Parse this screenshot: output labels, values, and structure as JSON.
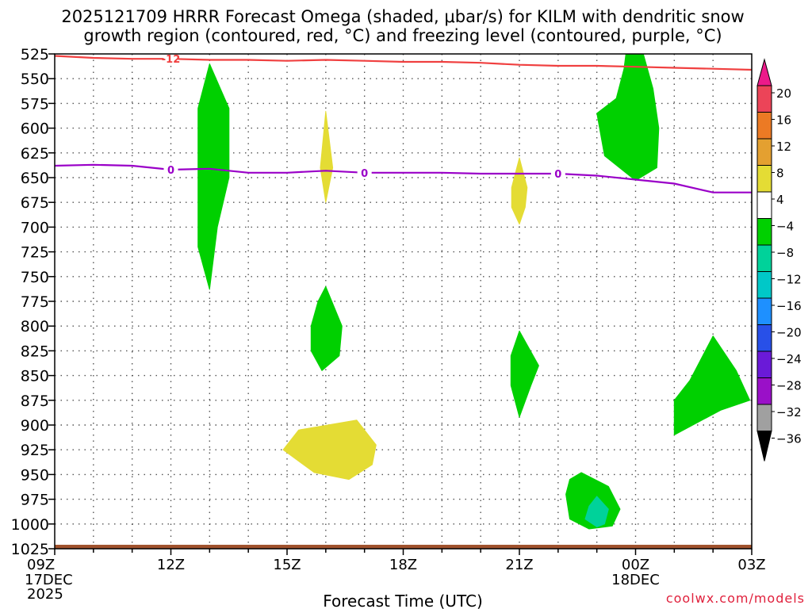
{
  "chart_data": {
    "type": "heatmap",
    "title_line1": "2025121709 HRRR Forecast Omega (shaded, μbar/s) for KILM with dendritic snow",
    "title_line2": "growth region (contoured, red, °C) and freezing level (contoured, purple, °C)",
    "xlabel": "Forecast Time (UTC)",
    "credit": "coolwx.com/models",
    "x_range_hours": [
      9,
      27
    ],
    "y_range_hPa": [
      525,
      1025
    ],
    "y_ticks": [
      525,
      550,
      575,
      600,
      625,
      650,
      675,
      700,
      725,
      750,
      775,
      800,
      825,
      850,
      875,
      900,
      925,
      950,
      975,
      1000,
      1025
    ],
    "x_ticks": [
      {
        "h": 9,
        "label": "09Z",
        "sub1": "17DEC",
        "sub2": "2025"
      },
      {
        "h": 12,
        "label": "12Z"
      },
      {
        "h": 15,
        "label": "15Z"
      },
      {
        "h": 18,
        "label": "18Z"
      },
      {
        "h": 21,
        "label": "21Z"
      },
      {
        "h": 24,
        "label": "00Z",
        "sub1": "18DEC"
      },
      {
        "h": 27,
        "label": "03Z"
      }
    ],
    "colorbar": {
      "levels": [
        "20",
        "16",
        "12",
        "8",
        "4",
        "−4",
        "−8",
        "−12",
        "−16",
        "−20",
        "−24",
        "−28",
        "−32",
        "−36"
      ],
      "colors": [
        "#ec4458",
        "#ec7a24",
        "#e4a030",
        "#e4dc34",
        "#ffffff",
        "#00d000",
        "#00d29a",
        "#00c8c8",
        "#1e90ff",
        "#2850e8",
        "#6a1ad8",
        "#9a10c8",
        "#a0a0a0"
      ],
      "top_color": "#ec1a8a",
      "bottom_color": "#000000"
    },
    "omega_regions": [
      {
        "name": "green-column-13z",
        "color": "#00d000",
        "points": [
          [
            13.0,
            535
          ],
          [
            13.5,
            580
          ],
          [
            13.5,
            650
          ],
          [
            13.2,
            700
          ],
          [
            13.0,
            763
          ],
          [
            12.7,
            720
          ],
          [
            12.7,
            580
          ]
        ]
      },
      {
        "name": "yellow-16z-upper",
        "color": "#e4dc34",
        "points": [
          [
            16.0,
            583
          ],
          [
            16.18,
            640
          ],
          [
            16.0,
            675
          ],
          [
            15.86,
            640
          ]
        ]
      },
      {
        "name": "green-16z-mid",
        "color": "#00d000",
        "points": [
          [
            16.0,
            760
          ],
          [
            16.42,
            800
          ],
          [
            16.35,
            830
          ],
          [
            15.9,
            845
          ],
          [
            15.62,
            825
          ],
          [
            15.62,
            800
          ],
          [
            15.8,
            775
          ]
        ]
      },
      {
        "name": "yellow-16z-low",
        "color": "#e4dc34",
        "points": [
          [
            16.8,
            895
          ],
          [
            17.3,
            920
          ],
          [
            17.2,
            940
          ],
          [
            16.6,
            955
          ],
          [
            15.7,
            948
          ],
          [
            14.9,
            925
          ],
          [
            15.3,
            905
          ]
        ]
      },
      {
        "name": "yellow-21z",
        "color": "#e4dc34",
        "points": [
          [
            21.0,
            630
          ],
          [
            21.2,
            660
          ],
          [
            21.15,
            680
          ],
          [
            21.0,
            697
          ],
          [
            20.8,
            680
          ],
          [
            20.8,
            660
          ]
        ]
      },
      {
        "name": "green-21z-mid",
        "color": "#00d000",
        "points": [
          [
            21.0,
            805
          ],
          [
            21.5,
            840
          ],
          [
            21.3,
            860
          ],
          [
            21.0,
            892
          ],
          [
            20.78,
            860
          ],
          [
            20.78,
            830
          ]
        ]
      },
      {
        "name": "green-22z-low",
        "color": "#00d000",
        "points": [
          [
            22.6,
            948
          ],
          [
            23.3,
            962
          ],
          [
            23.6,
            985
          ],
          [
            23.4,
            1002
          ],
          [
            22.8,
            1005
          ],
          [
            22.3,
            995
          ],
          [
            22.2,
            970
          ],
          [
            22.3,
            955
          ]
        ]
      },
      {
        "name": "teal-22z-low",
        "color": "#00d29a",
        "points": [
          [
            23.0,
            972
          ],
          [
            23.3,
            985
          ],
          [
            23.2,
            1000
          ],
          [
            23.0,
            1003
          ],
          [
            22.7,
            995
          ],
          [
            22.8,
            982
          ]
        ]
      },
      {
        "name": "green-24z-upper",
        "color": "#00d000",
        "points": [
          [
            24.2,
            525
          ],
          [
            24.45,
            560
          ],
          [
            24.6,
            600
          ],
          [
            24.55,
            640
          ],
          [
            24.0,
            653
          ],
          [
            23.2,
            628
          ],
          [
            23.0,
            585
          ],
          [
            23.5,
            570
          ],
          [
            23.7,
            540
          ],
          [
            23.75,
            525
          ]
        ]
      },
      {
        "name": "green-26z-low",
        "color": "#00d000",
        "points": [
          [
            26.0,
            810
          ],
          [
            26.6,
            845
          ],
          [
            26.95,
            875
          ],
          [
            26.2,
            885
          ],
          [
            25.0,
            910
          ],
          [
            25.0,
            875
          ],
          [
            25.4,
            855
          ]
        ]
      }
    ],
    "dgz_contour": {
      "label": "-12",
      "label_at_hour": 12.0,
      "color": "#f04040",
      "points": [
        [
          9,
          527
        ],
        [
          10,
          529
        ],
        [
          11,
          530
        ],
        [
          12,
          530
        ],
        [
          13,
          531
        ],
        [
          14,
          531
        ],
        [
          15,
          532
        ],
        [
          16,
          531
        ],
        [
          17,
          532
        ],
        [
          18,
          533
        ],
        [
          19,
          533
        ],
        [
          20,
          534
        ],
        [
          21,
          536
        ],
        [
          22,
          537
        ],
        [
          23,
          537
        ],
        [
          24,
          538
        ],
        [
          25,
          539
        ],
        [
          26,
          540
        ],
        [
          27,
          541
        ]
      ]
    },
    "freezing_contour": {
      "label": "0",
      "label_hours": [
        12.0,
        17.0,
        22.0
      ],
      "color": "#9a00c8",
      "points": [
        [
          9,
          638
        ],
        [
          10,
          637
        ],
        [
          11,
          638
        ],
        [
          12,
          642
        ],
        [
          13,
          641
        ],
        [
          14,
          645
        ],
        [
          15,
          645
        ],
        [
          16,
          643
        ],
        [
          17,
          645
        ],
        [
          18,
          645
        ],
        [
          19,
          645
        ],
        [
          20,
          646
        ],
        [
          21,
          646
        ],
        [
          22,
          646
        ],
        [
          23,
          648
        ],
        [
          24,
          652
        ],
        [
          25,
          656
        ],
        [
          26,
          665
        ],
        [
          27,
          665
        ]
      ]
    },
    "terrain_color": "#a0522d",
    "terrain_top_hPa": 1021
  }
}
